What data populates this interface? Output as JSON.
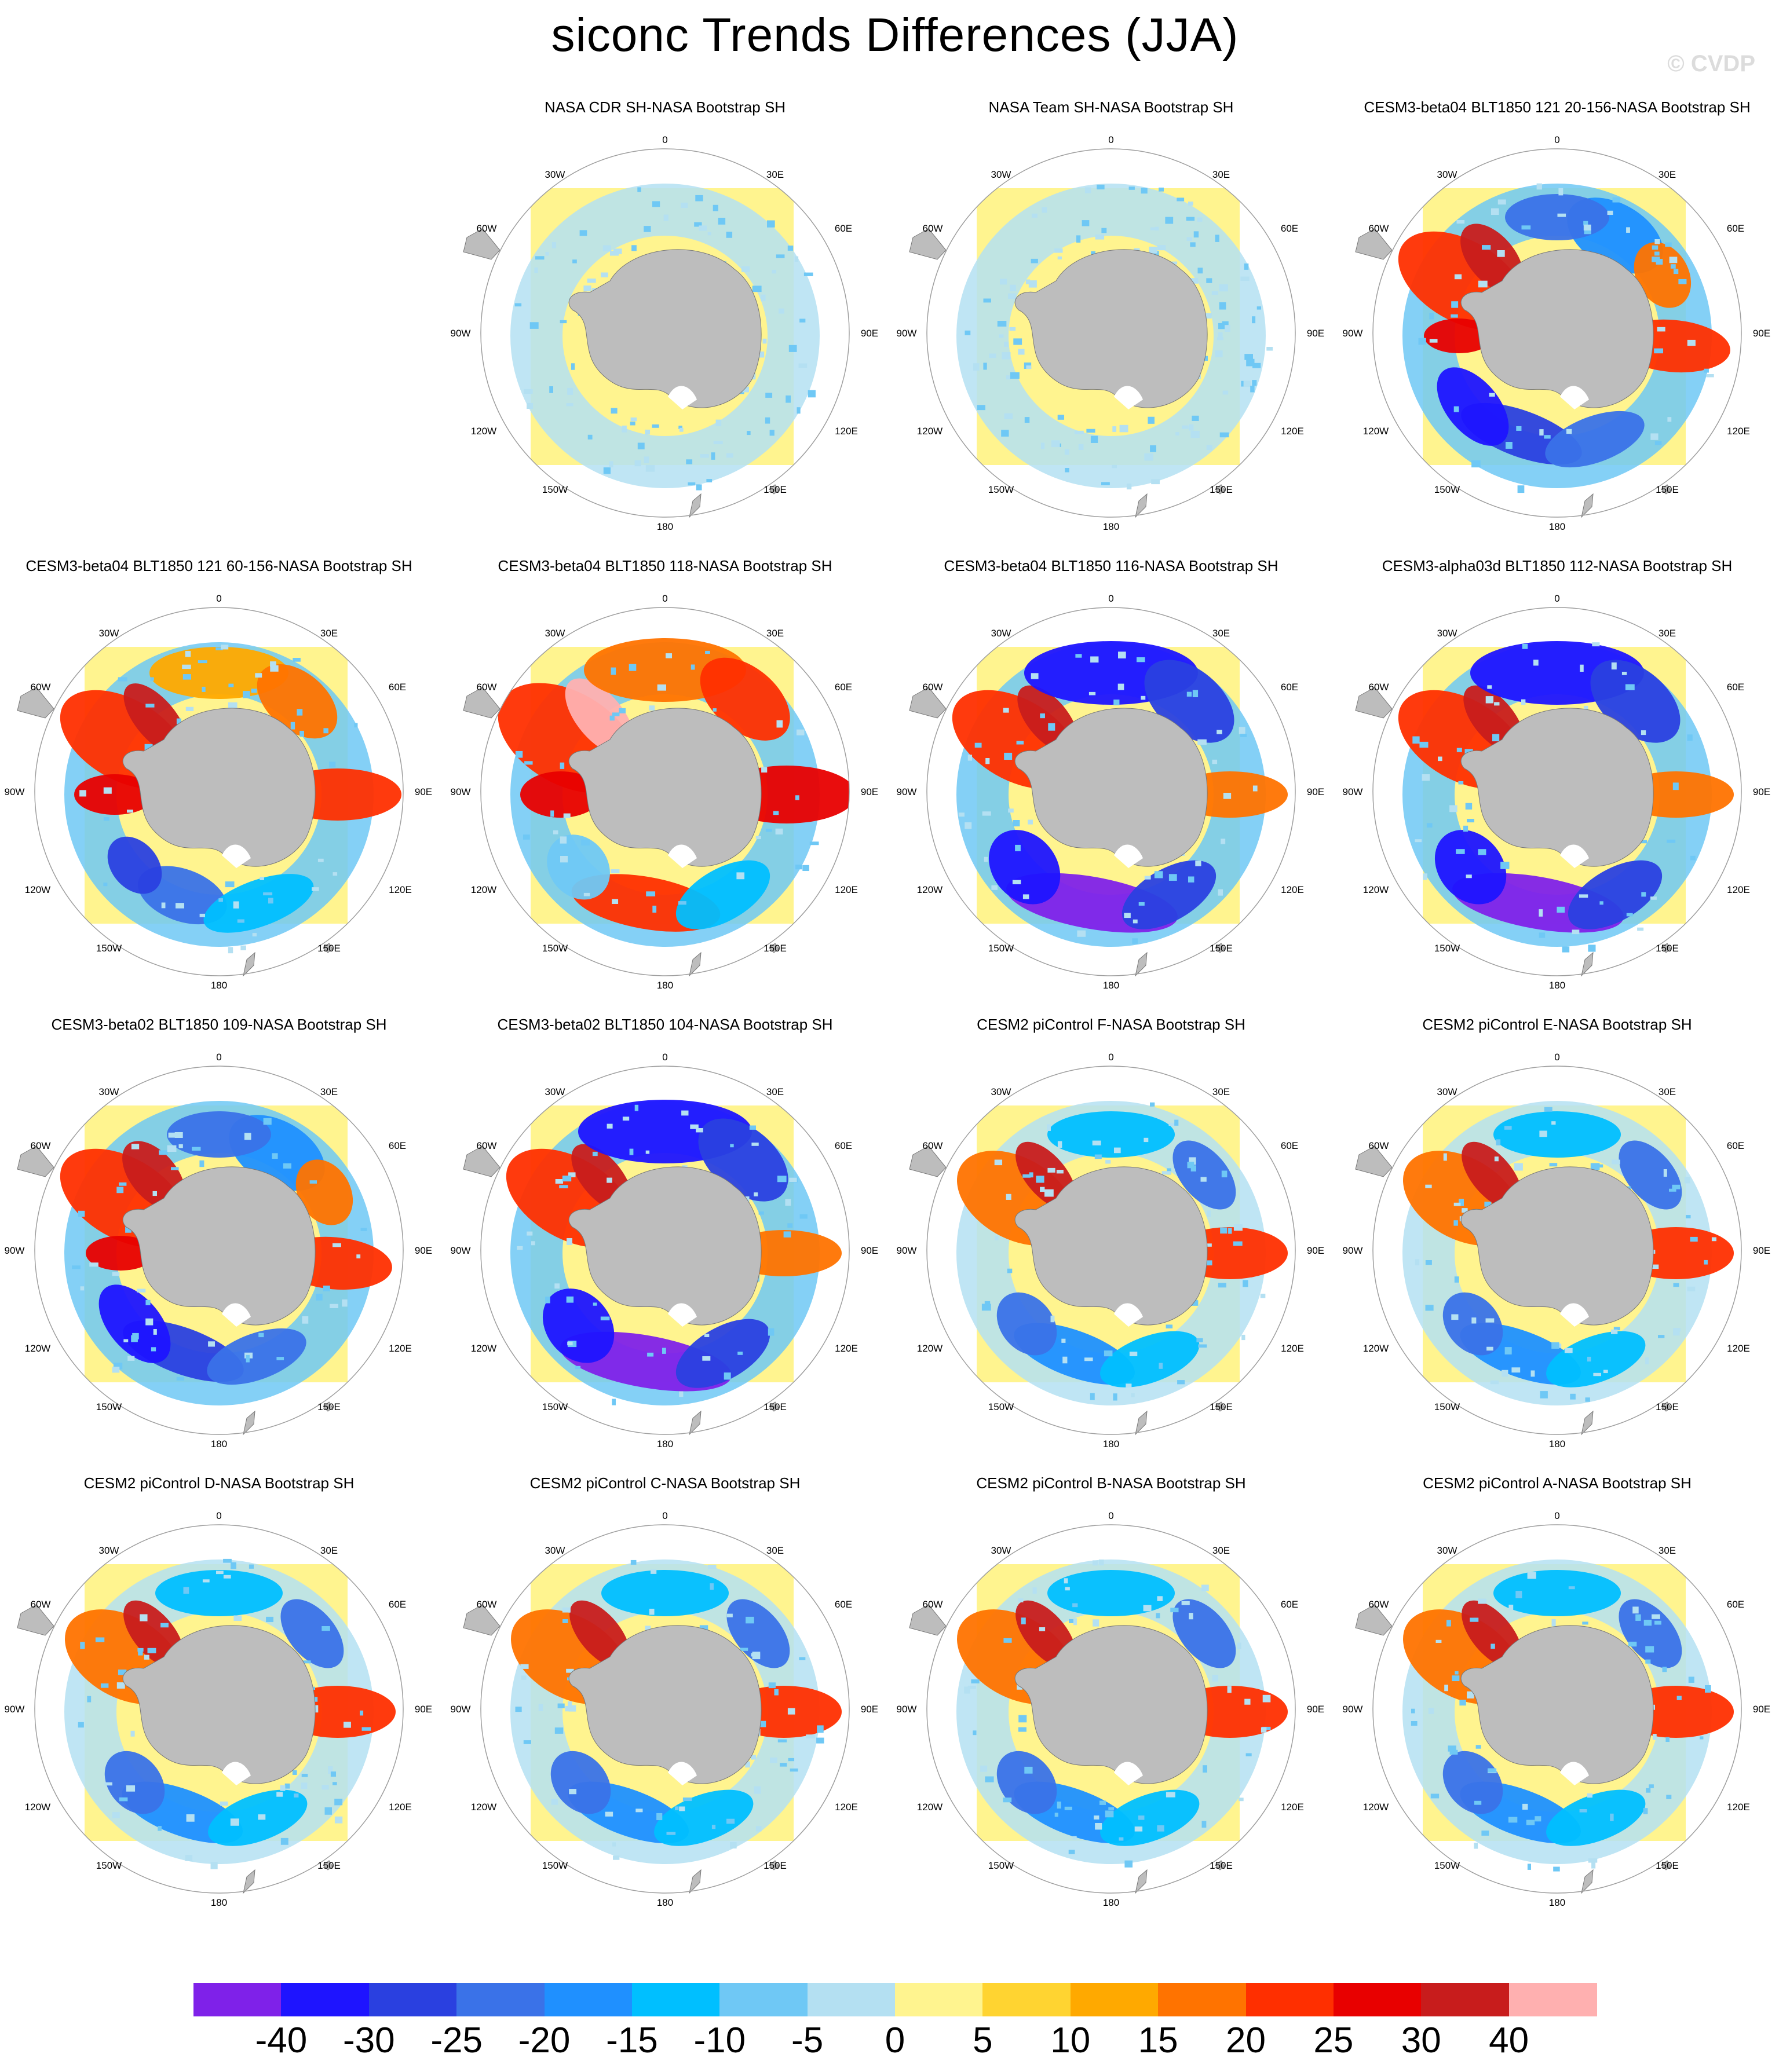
{
  "title": "siconc Trends Differences (JJA)",
  "watermark": "© CVDP",
  "grid_labels": {
    "top": "0",
    "bottom": "180",
    "top_left": "30W",
    "top_right": "30E",
    "upper_left": "60W",
    "upper_right": "60E",
    "left": "90W",
    "right": "90E",
    "lower_left": "120W",
    "lower_right": "120E",
    "bottom_left": "150W",
    "bottom_right": "150E"
  },
  "colors": {
    "land": "#bdbdbd",
    "land_stroke": "#777777",
    "background": "#fff48f",
    "circle": "#9e9e9e"
  },
  "colorbar": {
    "colors": [
      "#7f21e9",
      "#1e14ff",
      "#2a40e0",
      "#3a72e8",
      "#1f90ff",
      "#00bfff",
      "#6fc8f5",
      "#b4e0f2",
      "#fff48f",
      "#ffd431",
      "#ffa900",
      "#ff7300",
      "#ff2f00",
      "#e80000",
      "#c81c1c",
      "#ffb0b0"
    ],
    "labels": [
      "-40",
      "-30",
      "-25",
      "-20",
      "-15",
      "-10",
      "-5",
      "0",
      "5",
      "10",
      "15",
      "20",
      "25",
      "30",
      "40"
    ]
  },
  "chart_data": {
    "type": "heatmap",
    "projection": "south polar stereographic",
    "units_note": "",
    "panels": [
      {
        "title": "NASA CDR SH-NASA Bootstrap SH",
        "style": "obs_cdr"
      },
      {
        "title": "NASA Team SH-NASA Bootstrap SH",
        "style": "obs_team"
      },
      {
        "title": "CESM3-beta04 BLT1850 121 20-156-NASA Bootstrap SH",
        "style": "mixed"
      },
      {
        "title": "CESM3-beta04 BLT1850 121 60-156-NASA Bootstrap SH",
        "style": "warm"
      },
      {
        "title": "CESM3-beta04 BLT1850 118-NASA Bootstrap SH",
        "style": "hot"
      },
      {
        "title": "CESM3-beta04 BLT1850 116-NASA Bootstrap SH",
        "style": "cold"
      },
      {
        "title": "CESM3-alpha03d BLT1850 112-NASA Bootstrap SH",
        "style": "cold"
      },
      {
        "title": "CESM3-beta02 BLT1850 109-NASA Bootstrap SH",
        "style": "mixed"
      },
      {
        "title": "CESM3-beta02 BLT1850 104-NASA Bootstrap SH",
        "style": "cold"
      },
      {
        "title": "CESM2 piControl F-NASA Bootstrap SH",
        "style": "warm_light"
      },
      {
        "title": "CESM2 piControl E-NASA Bootstrap SH",
        "style": "warm_light"
      },
      {
        "title": "CESM2 piControl D-NASA Bootstrap SH",
        "style": "warm_light"
      },
      {
        "title": "CESM2 piControl C-NASA Bootstrap SH",
        "style": "warm_light"
      },
      {
        "title": "CESM2 piControl B-NASA Bootstrap SH",
        "style": "warm_light"
      },
      {
        "title": "CESM2 piControl A-NASA Bootstrap SH",
        "style": "warm_light"
      }
    ]
  }
}
